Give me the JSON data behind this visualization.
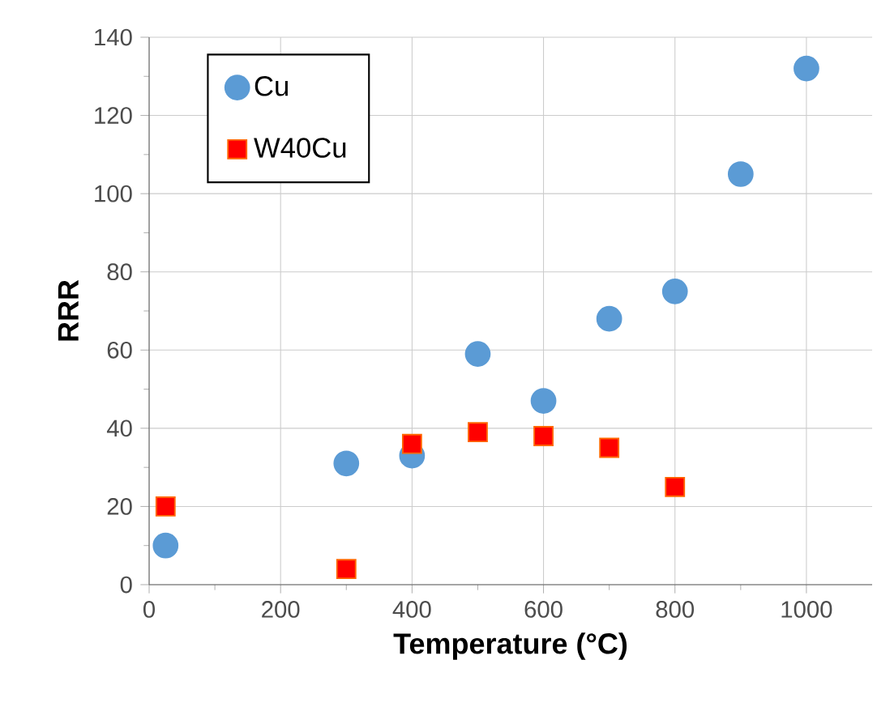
{
  "chart_data": {
    "type": "scatter",
    "xlabel": "Temperature (°C)",
    "ylabel": "RRR",
    "xlim": [
      0,
      1100
    ],
    "xticks": [
      0,
      200,
      400,
      600,
      800,
      1000
    ],
    "ylim": [
      0,
      140
    ],
    "yticks": [
      0,
      20,
      40,
      60,
      80,
      100,
      120,
      140
    ],
    "grid": true,
    "legend": "top left",
    "series": [
      {
        "name": "Cu",
        "color": "#5b9bd5",
        "marker": "circle",
        "x": [
          25,
          300,
          400,
          500,
          600,
          700,
          800,
          900,
          1000
        ],
        "values": [
          10,
          31,
          33,
          59,
          47,
          68,
          75,
          105,
          132
        ]
      },
      {
        "name": "W40Cu",
        "color": "#ff0000",
        "marker": "square",
        "x": [
          25,
          300,
          400,
          500,
          600,
          700,
          800
        ],
        "values": [
          20,
          4,
          36,
          39,
          38,
          35,
          25
        ]
      }
    ]
  }
}
